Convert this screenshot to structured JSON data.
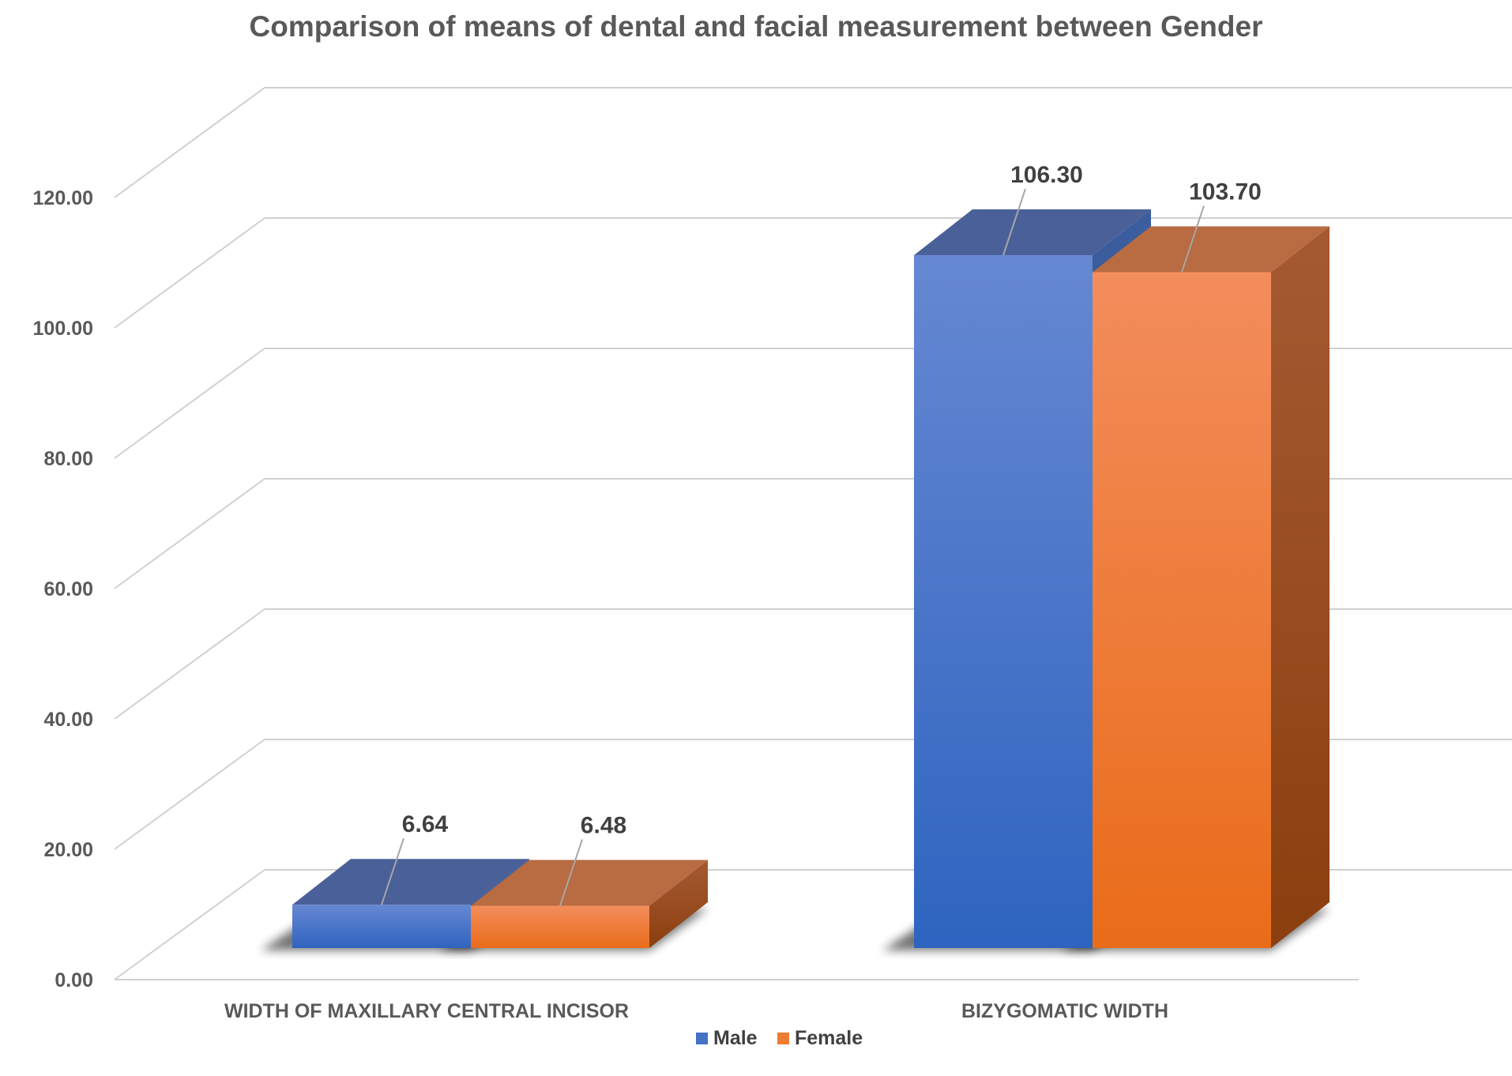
{
  "chart_data": {
    "type": "bar",
    "title": "Comparison of means of dental and facial measurement between Gender",
    "categories": [
      "WIDTH OF MAXILLARY CENTRAL INCISOR",
      "BIZYGOMATIC WIDTH"
    ],
    "series": [
      {
        "name": "Male",
        "values": [
          6.64,
          106.3
        ],
        "labels": [
          "6.64",
          "106.30"
        ],
        "color": "#4472C4"
      },
      {
        "name": "Female",
        "values": [
          6.48,
          103.7
        ],
        "labels": [
          "6.48",
          "103.70"
        ],
        "color": "#ED7D31"
      }
    ],
    "yticks": [
      "0.00",
      "20.00",
      "40.00",
      "60.00",
      "80.00",
      "100.00",
      "120.00"
    ],
    "ylim": [
      0,
      120
    ],
    "grid": true,
    "three_d": true,
    "legend": "bottom"
  }
}
